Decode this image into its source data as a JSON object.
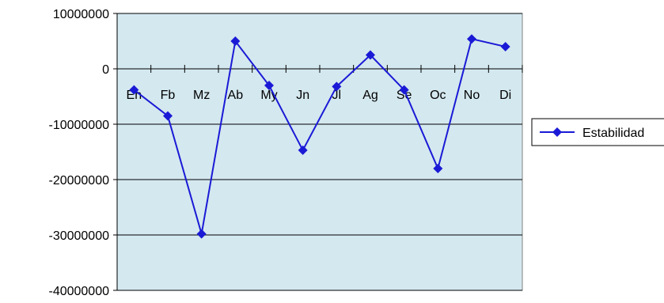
{
  "chart_data": {
    "type": "line",
    "categories": [
      "En",
      "Fb",
      "Mz",
      "Ab",
      "My",
      "Jn",
      "Jl",
      "Ag",
      "Se",
      "Oc",
      "No",
      "Di"
    ],
    "series": [
      {
        "name": "Estabilidad",
        "values": [
          -3800000,
          -8500000,
          -29800000,
          5000000,
          -3000000,
          -14700000,
          -3200000,
          2500000,
          -3800000,
          -18000000,
          5400000,
          4000000
        ]
      }
    ],
    "yticks": [
      "10000000",
      "0",
      "-10000000",
      "-20000000",
      "-30000000",
      "-40000000"
    ],
    "ylim": [
      -40000000,
      10000000
    ],
    "grid": true,
    "legend": "right",
    "colors": {
      "plot_bg": "#d4e8ef",
      "series": "#1a1ad6",
      "grid": "#000000"
    }
  }
}
